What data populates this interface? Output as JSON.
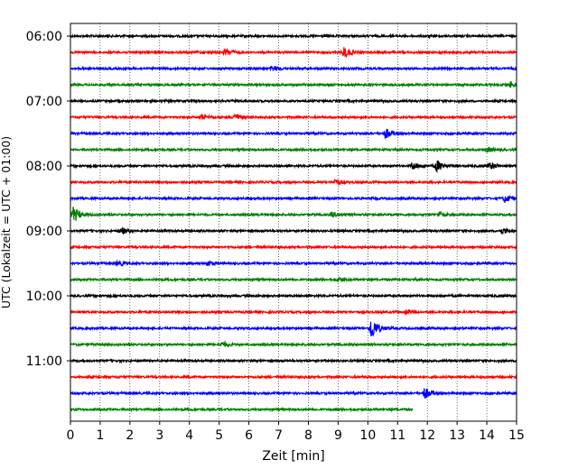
{
  "chart_data": {
    "type": "line",
    "title": "",
    "xlabel": "Zeit  [min]",
    "ylabel": "UTC (Lokalzeit = UTC + 01:00)",
    "xlim": [
      0,
      15
    ],
    "xticks": [
      0,
      1,
      2,
      3,
      4,
      5,
      6,
      7,
      8,
      9,
      10,
      11,
      12,
      13,
      14,
      15
    ],
    "yticks": [
      "06:00",
      "07:00",
      "08:00",
      "09:00",
      "10:00",
      "11:00"
    ],
    "grid": "vertical dotted at each minute",
    "trace_interval_min": 15,
    "trace_colors": [
      "#000000",
      "#ff0000",
      "#0000ff",
      "#008000"
    ],
    "traces": [
      {
        "start": "06:00",
        "color": "#000000",
        "end_min": 15
      },
      {
        "start": "06:15",
        "color": "#ff0000",
        "end_min": 15,
        "events": [
          {
            "t": 5.2,
            "amp": 3.5
          },
          {
            "t": 9.2,
            "amp": 6
          }
        ]
      },
      {
        "start": "06:30",
        "color": "#0000ff",
        "end_min": 15,
        "events": [
          {
            "t": 6.8,
            "amp": 2.5
          }
        ]
      },
      {
        "start": "06:45",
        "color": "#008000",
        "end_min": 15,
        "events": [
          {
            "t": 14.8,
            "amp": 3
          }
        ]
      },
      {
        "start": "07:00",
        "color": "#000000",
        "end_min": 15
      },
      {
        "start": "07:15",
        "color": "#ff0000",
        "end_min": 15,
        "events": [
          {
            "t": 4.4,
            "amp": 3
          },
          {
            "t": 5.5,
            "amp": 4
          }
        ]
      },
      {
        "start": "07:30",
        "color": "#0000ff",
        "end_min": 15,
        "events": [
          {
            "t": 10.6,
            "amp": 5
          }
        ]
      },
      {
        "start": "07:45",
        "color": "#008000",
        "end_min": 15,
        "events": [
          {
            "t": 14.0,
            "amp": 2.5
          }
        ]
      },
      {
        "start": "08:00",
        "color": "#000000",
        "end_min": 15,
        "events": [
          {
            "t": 11.5,
            "amp": 3.5
          },
          {
            "t": 12.3,
            "amp": 6
          },
          {
            "t": 14.1,
            "amp": 3.5
          }
        ]
      },
      {
        "start": "08:15",
        "color": "#ff0000",
        "end_min": 15,
        "events": [
          {
            "t": 8.9,
            "amp": 3
          }
        ]
      },
      {
        "start": "08:30",
        "color": "#0000ff",
        "end_min": 15,
        "events": [
          {
            "t": 14.6,
            "amp": 4
          }
        ]
      },
      {
        "start": "08:45",
        "color": "#008000",
        "end_min": 15,
        "events": [
          {
            "t": 0.1,
            "amp": 8
          },
          {
            "t": 8.8,
            "amp": 2.5
          },
          {
            "t": 12.4,
            "amp": 3
          }
        ]
      },
      {
        "start": "09:00",
        "color": "#000000",
        "end_min": 15,
        "events": [
          {
            "t": 1.7,
            "amp": 3.5
          },
          {
            "t": 14.5,
            "amp": 3
          }
        ]
      },
      {
        "start": "09:15",
        "color": "#ff0000",
        "end_min": 15
      },
      {
        "start": "09:30",
        "color": "#0000ff",
        "end_min": 15,
        "events": [
          {
            "t": 1.6,
            "amp": 2.5
          },
          {
            "t": 4.6,
            "amp": 2.5
          }
        ]
      },
      {
        "start": "09:45",
        "color": "#008000",
        "end_min": 15,
        "events": [
          {
            "t": 9.0,
            "amp": 2
          }
        ]
      },
      {
        "start": "10:00",
        "color": "#000000",
        "end_min": 15
      },
      {
        "start": "10:15",
        "color": "#ff0000",
        "end_min": 15,
        "events": [
          {
            "t": 11.3,
            "amp": 2
          }
        ]
      },
      {
        "start": "10:30",
        "color": "#0000ff",
        "end_min": 15,
        "events": [
          {
            "t": 10.1,
            "amp": 12
          }
        ]
      },
      {
        "start": "10:45",
        "color": "#008000",
        "end_min": 15,
        "events": [
          {
            "t": 5.1,
            "amp": 2.5
          }
        ]
      },
      {
        "start": "11:00",
        "color": "#000000",
        "end_min": 15
      },
      {
        "start": "11:15",
        "color": "#ff0000",
        "end_min": 15
      },
      {
        "start": "11:30",
        "color": "#0000ff",
        "end_min": 15,
        "events": [
          {
            "t": 11.9,
            "amp": 6
          }
        ]
      },
      {
        "start": "11:45",
        "color": "#008000",
        "end_min": 11.5
      }
    ]
  }
}
